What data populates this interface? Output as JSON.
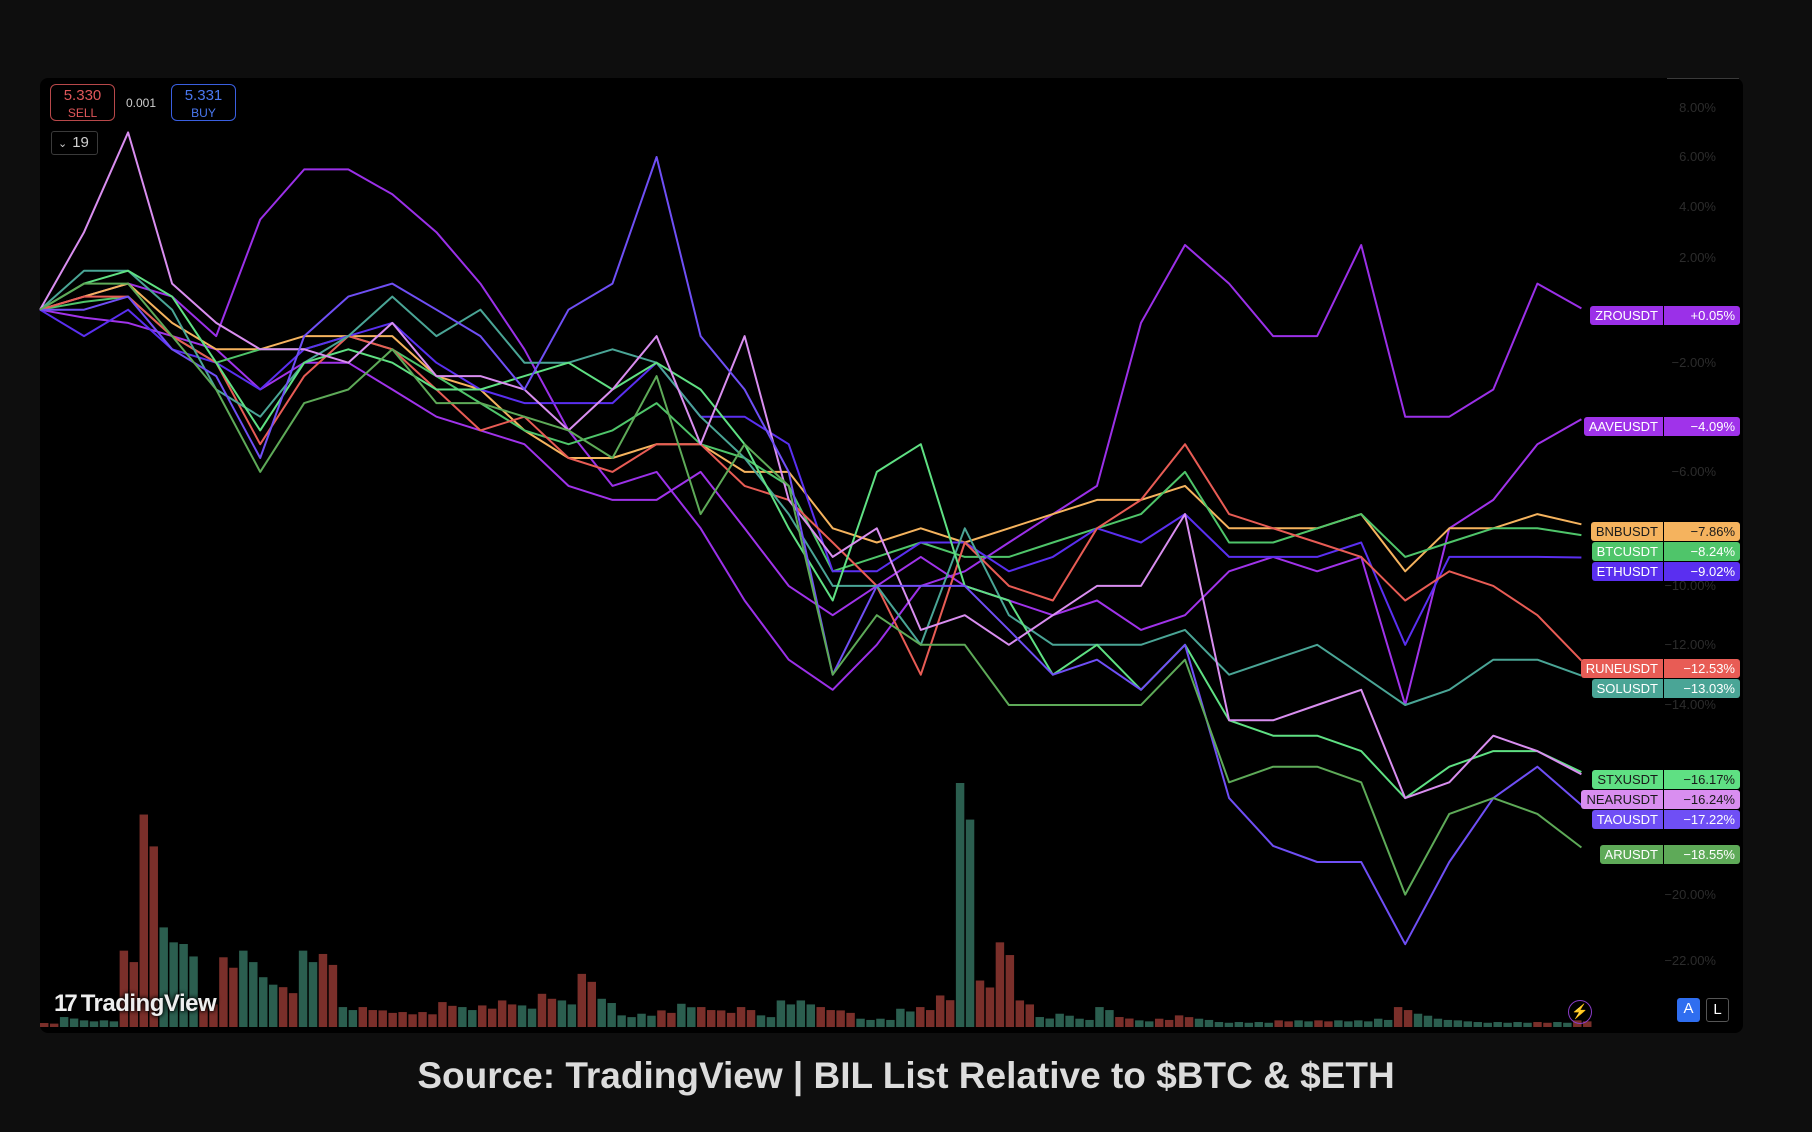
{
  "trade": {
    "sell_price": "5.330",
    "sell_label": "SELL",
    "spread": "0.001",
    "buy_price": "5.331",
    "buy_label": "BUY"
  },
  "interval": {
    "chevron": "⌄",
    "value": "19"
  },
  "logo": {
    "mark": "17",
    "text": "TradingView"
  },
  "controls": {
    "auto_label": "A",
    "log_label": "L",
    "bolt_icon": "⚡"
  },
  "caption": "Source: TradingView | BIL List Relative to $BTC & $ETH",
  "chart_data": {
    "type": "line",
    "scale": "percent-log",
    "y_ticks": [
      "8.00%",
      "6.00%",
      "4.00%",
      "2.00%",
      "−2.00%",
      "−6.00%",
      "−10.00%",
      "−12.00%",
      "−14.00%",
      "−20.00%",
      "−22.00%"
    ],
    "y_tick_values": [
      8,
      6,
      4,
      2,
      -2,
      -6,
      -10,
      -12,
      -14,
      -20,
      -22
    ],
    "ylim": [
      -22.5,
      9
    ],
    "grid": false,
    "series": [
      {
        "name": "ZROUSDT",
        "last": "+0.05%",
        "color": "#9b30e8",
        "text": "#ffffff",
        "values": [
          0,
          0.5,
          1,
          0.5,
          -1,
          3.5,
          5.5,
          5.5,
          4.5,
          3,
          1,
          -1.5,
          -4.5,
          -6.5,
          -6,
          -8,
          -10.5,
          -12.5,
          -13.5,
          -12,
          -10,
          -9.5,
          -8.5,
          -7.5,
          -6.5,
          -0.5,
          2.5,
          1,
          -1,
          -1,
          2.5,
          -4,
          -4,
          -3,
          1,
          0.05
        ]
      },
      {
        "name": "AAVEUSDT",
        "last": "−4.09%",
        "color": "#a033ea",
        "text": "#ffffff",
        "values": [
          0,
          -0.3,
          -0.5,
          -1,
          -1.5,
          -3,
          -2,
          -2,
          -3,
          -4,
          -4.5,
          -5,
          -6.5,
          -7,
          -7,
          -6,
          -8,
          -10,
          -11,
          -10,
          -9,
          -10,
          -10.5,
          -11,
          -10.5,
          -11.5,
          -11,
          -9.5,
          -9,
          -9.5,
          -9,
          -14,
          -8,
          -7,
          -5,
          -4.09
        ]
      },
      {
        "name": "BNBUSDT",
        "last": "−7.86%",
        "color": "#f5b35e",
        "text": "#1a1a1a",
        "values": [
          0,
          0.5,
          1,
          -0.5,
          -1.5,
          -1.5,
          -1,
          -1,
          -1,
          -2.5,
          -3,
          -4.5,
          -5.5,
          -5.5,
          -5,
          -5,
          -6,
          -6,
          -8,
          -8.5,
          -8,
          -8.5,
          -8,
          -7.5,
          -7,
          -7,
          -6.5,
          -8,
          -8,
          -8,
          -7.5,
          -9.5,
          -8,
          -8,
          -7.5,
          -7.86
        ]
      },
      {
        "name": "BTCUSDT",
        "last": "−8.24%",
        "color": "#4fc56a",
        "text": "#ffffff",
        "values": [
          0,
          0.3,
          0.5,
          -1,
          -2,
          -1.5,
          -1.5,
          -1,
          -1.5,
          -2.5,
          -3.5,
          -4.5,
          -5,
          -4.5,
          -3.5,
          -5,
          -5.5,
          -6.5,
          -9.5,
          -9,
          -8.5,
          -9,
          -9,
          -8.5,
          -8,
          -7.5,
          -6,
          -8.5,
          -8.5,
          -8,
          -7.5,
          -9,
          -8.5,
          -8,
          -8,
          -8.24
        ]
      },
      {
        "name": "ETHUSDT",
        "last": "−9.02%",
        "color": "#5a2ff0",
        "text": "#ffffff",
        "values": [
          0,
          -1,
          0,
          -1.5,
          -2,
          -3,
          -1.5,
          -1,
          -0.5,
          -2,
          -3,
          -3.5,
          -3.5,
          -3.5,
          -2,
          -4,
          -4,
          -5,
          -9.5,
          -9.5,
          -8.5,
          -8.5,
          -9.5,
          -9,
          -8,
          -8.5,
          -7.5,
          -9,
          -9,
          -9,
          -8.5,
          -12,
          -9,
          -9,
          -9,
          -9.02
        ]
      },
      {
        "name": "RUNEUSDT",
        "last": "−12.53%",
        "color": "#e85c55",
        "text": "#ffffff",
        "values": [
          0,
          0.5,
          0.5,
          -1,
          -2,
          -5,
          -2.5,
          -1,
          -1.5,
          -3,
          -4.5,
          -4,
          -5.5,
          -6,
          -5,
          -5,
          -6.5,
          -7,
          -8.5,
          -10,
          -13,
          -8.5,
          -10,
          -10.5,
          -8,
          -7,
          -5,
          -7.5,
          -8,
          -8.5,
          -9,
          -10.5,
          -9.5,
          -10,
          -11,
          -12.53
        ]
      },
      {
        "name": "SOLUSDT",
        "last": "−13.03%",
        "color": "#4aa596",
        "text": "#ffffff",
        "values": [
          0,
          1.5,
          1.5,
          0,
          -3,
          -4,
          -2,
          -1,
          0.5,
          -1,
          0,
          -2,
          -2,
          -1.5,
          -2,
          -4,
          -5.5,
          -7.5,
          -10,
          -10,
          -12,
          -8,
          -11,
          -12,
          -12,
          -12,
          -11.5,
          -13,
          -12.5,
          -12,
          -13,
          -14,
          -13.5,
          -12.5,
          -12.5,
          -13.03
        ]
      },
      {
        "name": "STXUSDT",
        "last": "−16.17%",
        "color": "#5fe083",
        "text": "#1a1a1a",
        "values": [
          0,
          1,
          1.5,
          0.5,
          -2,
          -4.5,
          -2,
          -1.5,
          -2,
          -3,
          -3,
          -2.5,
          -2,
          -3,
          -2,
          -3,
          -5,
          -8,
          -10.5,
          -6,
          -5,
          -10,
          -10.5,
          -13,
          -12,
          -13.5,
          -12,
          -14.5,
          -15,
          -15,
          -15.5,
          -17,
          -16,
          -15.5,
          -15.5,
          -16.17
        ]
      },
      {
        "name": "NEARUSDT",
        "last": "−16.24%",
        "color": "#d98ef0",
        "text": "#1a1a1a",
        "values": [
          0,
          3,
          7,
          1,
          -0.5,
          -1.5,
          -1.5,
          -2,
          -0.5,
          -2.5,
          -2.5,
          -3,
          -4.5,
          -3,
          -1,
          -5,
          -1,
          -7,
          -9,
          -8,
          -11.5,
          -11,
          -12,
          -11,
          -10,
          -10,
          -7.5,
          -14.5,
          -14.5,
          -14,
          -13.5,
          -17,
          -16.5,
          -15,
          -15.5,
          -16.24
        ]
      },
      {
        "name": "TAOUSDT",
        "last": "−17.22%",
        "color": "#6f4ff5",
        "text": "#ffffff",
        "values": [
          0,
          0,
          0.5,
          -1.5,
          -2.5,
          -5.5,
          -1,
          0.5,
          1,
          0,
          -1,
          -3,
          0,
          1,
          6,
          -1,
          -3,
          -6,
          -13,
          -10,
          -10,
          -10,
          -11.5,
          -13,
          -12.5,
          -13.5,
          -12,
          -17,
          -18.5,
          -19,
          -19,
          -21.5,
          -19,
          -17,
          -16,
          -17.22
        ]
      },
      {
        "name": "ARUSDT",
        "last": "−18.55%",
        "color": "#5eaa58",
        "text": "#ffffff",
        "values": [
          0,
          1,
          1,
          -1,
          -3,
          -6,
          -3.5,
          -3,
          -1.5,
          -3.5,
          -3.5,
          -4,
          -4.5,
          -5.5,
          -2.5,
          -7.5,
          -5,
          -6.5,
          -13,
          -11,
          -12,
          -12,
          -14,
          -14,
          -14,
          -14,
          -12.5,
          -16.5,
          -16,
          -16,
          -16.5,
          -20,
          -17.5,
          -17,
          -17.5,
          -18.55
        ]
      }
    ],
    "volume": {
      "up_color": "#2b5e4f",
      "down_color": "#7a2f2a",
      "values": [
        12,
        30,
        20,
        20,
        230,
        640,
        300,
        250,
        80,
        210,
        230,
        150,
        120,
        230,
        220,
        60,
        60,
        50,
        45,
        45,
        75,
        60,
        65,
        80,
        65,
        100,
        80,
        160,
        85,
        35,
        40,
        50,
        70,
        60,
        50,
        60,
        35,
        80,
        80,
        60,
        50,
        25,
        25,
        55,
        60,
        95,
        735,
        140,
        255,
        80,
        30,
        40,
        25,
        60,
        30,
        20,
        25,
        35,
        25,
        15,
        15,
        15,
        20,
        20,
        20,
        20,
        20,
        25,
        60,
        40,
        25,
        20,
        15,
        15,
        15,
        15,
        15,
        20
      ],
      "direction": [
        "d",
        "u",
        "u",
        "u",
        "d",
        "d",
        "u",
        "u",
        "d",
        "d",
        "u",
        "u",
        "d",
        "u",
        "d",
        "u",
        "d",
        "d",
        "d",
        "d",
        "d",
        "u",
        "d",
        "d",
        "u",
        "d",
        "u",
        "d",
        "u",
        "u",
        "u",
        "d",
        "u",
        "d",
        "d",
        "d",
        "u",
        "u",
        "u",
        "d",
        "d",
        "u",
        "u",
        "u",
        "d",
        "d",
        "u",
        "d",
        "d",
        "d",
        "u",
        "u",
        "u",
        "u",
        "d",
        "u",
        "d",
        "d",
        "u",
        "u",
        "u",
        "u",
        "d",
        "u",
        "d",
        "u",
        "u",
        "u",
        "d",
        "u",
        "u",
        "u",
        "u",
        "u",
        "u",
        "d",
        "u",
        "d"
      ]
    }
  }
}
